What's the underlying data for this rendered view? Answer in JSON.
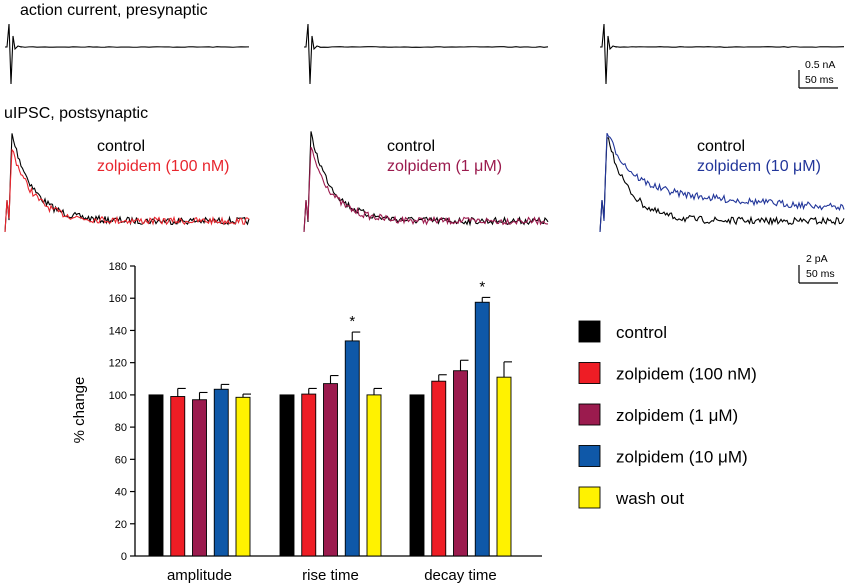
{
  "traces": {
    "presynaptic_label": "action current, presynaptic",
    "postsynaptic_label": "uIPSC, postsynaptic",
    "panels": [
      {
        "control_label": "control",
        "drug_label": "zolpidem (100 nM)",
        "drug_color": "#e8262e",
        "drug_tail": 0.0
      },
      {
        "control_label": "control",
        "drug_label": "zolpidem (1 μM)",
        "drug_color": "#9b1b4e",
        "drug_tail": 0.0
      },
      {
        "control_label": "control",
        "drug_label": "zolpidem (10 μM)",
        "drug_color": "#22369a",
        "drug_tail": 0.35
      }
    ],
    "scalebar_top": {
      "current": "0.5 nA",
      "time": "50 ms"
    },
    "scalebar_bottom": {
      "current": "2 pA",
      "time": "50 ms"
    }
  },
  "chart_data": {
    "type": "bar",
    "ylabel": "% change",
    "xlabel": "",
    "ylim": [
      0,
      180
    ],
    "yticks": [
      0,
      20,
      40,
      60,
      80,
      100,
      120,
      140,
      160,
      180
    ],
    "categories": [
      "amplitude",
      "rise time",
      "decay time"
    ],
    "series": [
      {
        "name": "control",
        "color": "#000000",
        "values": [
          100,
          100,
          100
        ],
        "errors": [
          0,
          0,
          0
        ]
      },
      {
        "name": "zolpidem (100 nM)",
        "color": "#ee1d25",
        "values": [
          99,
          100.5,
          108.5
        ],
        "errors": [
          5,
          3.5,
          4
        ]
      },
      {
        "name": "zolpidem (1 μM)",
        "color": "#9b1b4e",
        "values": [
          97,
          107,
          115
        ],
        "errors": [
          4.5,
          5,
          6.5
        ]
      },
      {
        "name": "zolpidem (10 μM)",
        "color": "#0f58a8",
        "values": [
          103.5,
          133.5,
          157.5
        ],
        "errors": [
          3,
          5.5,
          3
        ]
      },
      {
        "name": "wash out",
        "color": "#fff200",
        "values": [
          98.5,
          100,
          111
        ],
        "errors": [
          2,
          4,
          9.5
        ]
      }
    ],
    "annotations": [
      {
        "category": "rise time",
        "series": "zolpidem (10 μM)",
        "text": "*"
      },
      {
        "category": "decay time",
        "series": "zolpidem (10 μM)",
        "text": "*"
      }
    ]
  }
}
